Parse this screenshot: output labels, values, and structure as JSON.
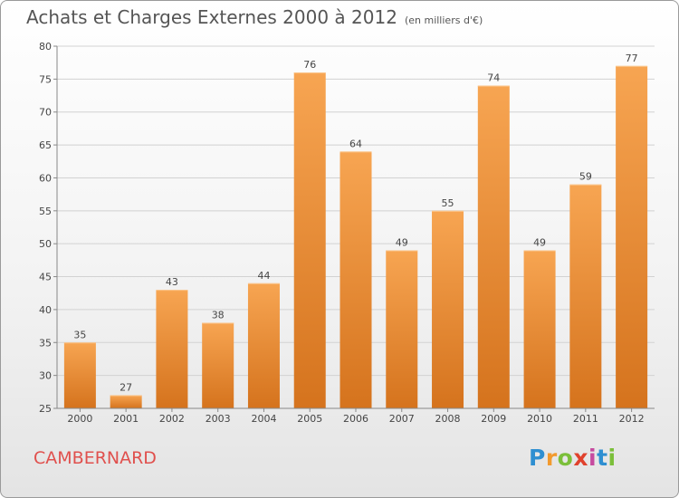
{
  "header": {
    "title": "Achats et Charges Externes 2000 à 2012",
    "unit": "(en milliers d'€)"
  },
  "footer": {
    "city": "CAMBERNARD",
    "logo": {
      "letters": [
        "P",
        "r",
        "o",
        "x",
        "i",
        "t",
        "i"
      ],
      "colors": [
        "#2f8fd1",
        "#f29a2e",
        "#7bbf3a",
        "#e0422d",
        "#c64a9f",
        "#2f8fd1",
        "#7bbf3a"
      ]
    }
  },
  "chart_data": {
    "type": "bar",
    "categories": [
      "2000",
      "2001",
      "2002",
      "2003",
      "2004",
      "2005",
      "2006",
      "2007",
      "2008",
      "2009",
      "2010",
      "2011",
      "2012"
    ],
    "values": [
      35,
      27,
      43,
      38,
      44,
      76,
      64,
      49,
      55,
      74,
      49,
      59,
      77
    ],
    "ylim": [
      25,
      80
    ],
    "yticks": [
      25,
      30,
      35,
      40,
      45,
      50,
      55,
      60,
      65,
      70,
      75,
      80
    ],
    "grid": true,
    "legend": "none",
    "colors": {
      "bar_light": "#f7a552",
      "bar_dark": "#d5731d"
    }
  }
}
